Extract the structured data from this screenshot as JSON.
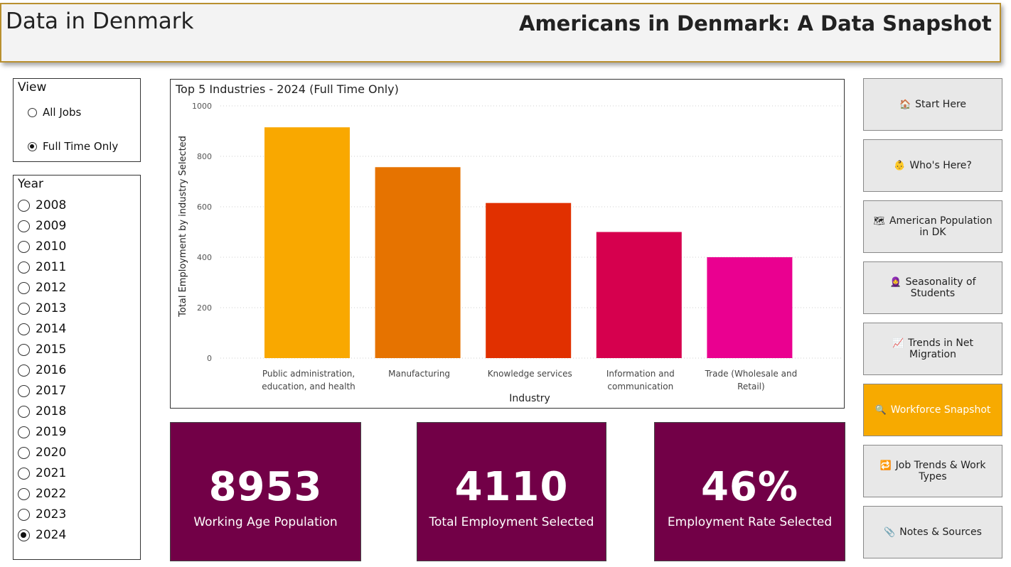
{
  "header": {
    "left_title": "Data in Denmark",
    "title": "Americans in Denmark: A Data Snapshot"
  },
  "view": {
    "title": "View",
    "options": [
      {
        "label": "All Jobs",
        "checked": false
      },
      {
        "label": "Full Time Only",
        "checked": true
      }
    ]
  },
  "year": {
    "title": "Year",
    "options": [
      "2008",
      "2009",
      "2010",
      "2011",
      "2012",
      "2013",
      "2014",
      "2015",
      "2016",
      "2017",
      "2018",
      "2019",
      "2020",
      "2021",
      "2022",
      "2023",
      "2024"
    ],
    "selected": "2024"
  },
  "chart_data": {
    "type": "bar",
    "title": "Top 5 Industries - 2024 (Full Time Only)",
    "xlabel": "Industry",
    "ylabel": "Total Employment by industry Selected",
    "ylim": [
      0,
      1000
    ],
    "yticks": [
      0,
      200,
      400,
      600,
      800,
      1000
    ],
    "grid": true,
    "categories": [
      [
        "Public administration,",
        "education, and health"
      ],
      [
        "Manufacturing"
      ],
      [
        "Knowledge services"
      ],
      [
        "Information and",
        "communication"
      ],
      [
        "Trade (Wholesale and",
        "Retail)"
      ]
    ],
    "values": [
      915,
      757,
      615,
      500,
      400
    ],
    "colors": [
      "#f9a800",
      "#e67300",
      "#e13000",
      "#d6004e",
      "#ea0090"
    ]
  },
  "kpis": [
    {
      "value": "8953",
      "label": "Working Age Population"
    },
    {
      "value": "4110",
      "label": "Total Employment Selected"
    },
    {
      "value": "46%",
      "label": "Employment Rate Selected"
    }
  ],
  "nav": [
    {
      "icon": "🏠",
      "icon_name": "house-icon",
      "label": "Start Here",
      "active": false
    },
    {
      "icon": "👶",
      "icon_name": "person-icon",
      "label": "Who's Here?",
      "active": false
    },
    {
      "icon": "🗺",
      "icon_name": "map-icon",
      "label": "American Population in DK",
      "active": false
    },
    {
      "icon": "🧕",
      "icon_name": "student-icon",
      "label": "Seasonality of Students",
      "active": false
    },
    {
      "icon": "📈",
      "icon_name": "trend-chart-icon",
      "label": "Trends in Net Migration",
      "active": false
    },
    {
      "icon": "🔍",
      "icon_name": "magnifier-icon",
      "label": "Workforce Snapshot",
      "active": true
    },
    {
      "icon": "🔁",
      "icon_name": "repeat-icon",
      "label": "Job Trends & Work Types",
      "active": false
    },
    {
      "icon": "📎",
      "icon_name": "paperclip-icon",
      "label": "Notes & Sources",
      "active": false
    }
  ]
}
